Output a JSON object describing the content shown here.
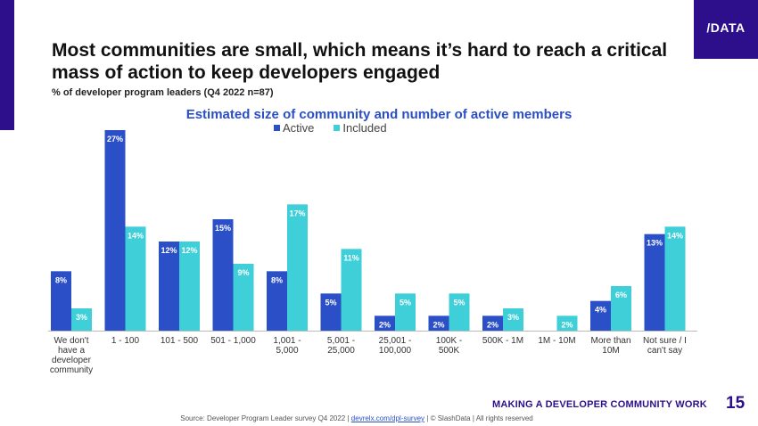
{
  "logo": "/DATA",
  "title": "Most communities are small, which means it’s hard to reach a critical mass of action to keep developers engaged",
  "subtitle": "% of developer program leaders (Q4 2022 n=87)",
  "footer": {
    "section": "MAKING A DEVELOPER COMMUNITY WORK",
    "page": "15",
    "source_pre": "Source: Developer Program Leader survey Q4 2022 |",
    "source_link": "devrelx.com/dpl-survey",
    "source_post": "| © SlashData | All rights reserved"
  },
  "colors": {
    "brand": "#2d0f8c",
    "active": "#2a4fc7",
    "included": "#3ecfd8"
  },
  "chart_data": {
    "type": "bar",
    "title": "Estimated size of community and number of active members",
    "categories": [
      [
        "We don't",
        "have a",
        "developer",
        "community"
      ],
      [
        "1 - 100"
      ],
      [
        "101 - 500"
      ],
      [
        "501 - 1,000"
      ],
      [
        "1,001 -",
        "5,000"
      ],
      [
        "5,001 -",
        "25,000"
      ],
      [
        "25,001 -",
        "100,000"
      ],
      [
        "100K -",
        "500K"
      ],
      [
        "500K - 1M"
      ],
      [
        "1M - 10M"
      ],
      [
        "More than",
        "10M"
      ],
      [
        "Not sure / I",
        "can't say"
      ]
    ],
    "series": [
      {
        "name": "Active",
        "color": "#2a4fc7",
        "values": [
          8,
          27,
          12,
          15,
          8,
          5,
          2,
          2,
          2,
          null,
          4,
          13
        ]
      },
      {
        "name": "Included",
        "color": "#3ecfd8",
        "values": [
          3,
          14,
          12,
          9,
          17,
          11,
          5,
          5,
          3,
          2,
          6,
          14
        ]
      }
    ],
    "value_suffix": "%",
    "legend": "top-center",
    "grid": false,
    "ylim": [
      0,
      27
    ]
  }
}
